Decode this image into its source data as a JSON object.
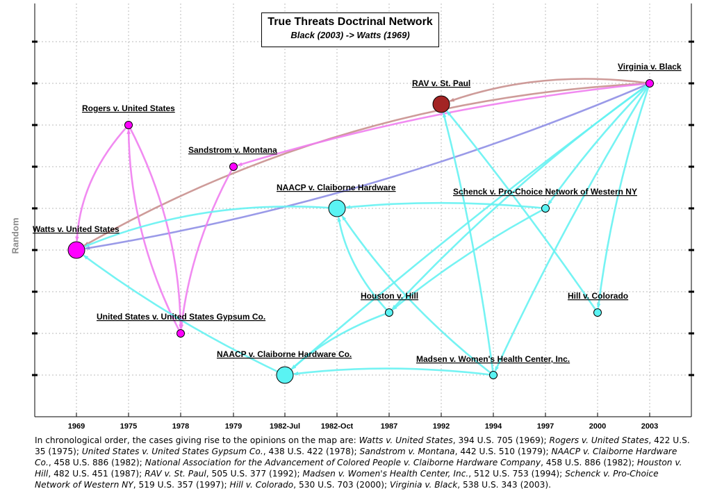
{
  "title": "True Threats Doctrinal Network",
  "subtitle": "Black (2003) -> Watts (1969)",
  "ylabel": "Random",
  "colors": {
    "magenta": "#ff00ff",
    "magenta_edge": "#f07ef0",
    "cyan": "#66ffff",
    "cyan_edge": "#66f2f2",
    "cyan_fill": "#5af3f3",
    "darkred": "#a32424",
    "brown_edge": "#c9908e",
    "blue_edge": "#8f8fe6",
    "grid": "#bbbbbb"
  },
  "x_ticks": [
    "1969",
    "1975",
    "1978",
    "1979",
    "1982-Jul",
    "1982-Oct",
    "1987",
    "1992",
    "1994",
    "1997",
    "2000",
    "2003"
  ],
  "nodes": [
    {
      "id": "watts",
      "label": "Watts v. United States",
      "x": "1969",
      "size": "large",
      "color": "magenta"
    },
    {
      "id": "rogers",
      "label": "Rogers v. United States",
      "x": "1975",
      "size": "small",
      "color": "magenta"
    },
    {
      "id": "gypsum",
      "label": "United States v. United States Gypsum Co.",
      "x": "1978",
      "size": "small",
      "color": "magenta"
    },
    {
      "id": "sandstrom",
      "label": "Sandstrom v. Montana",
      "x": "1979",
      "size": "small",
      "color": "magenta"
    },
    {
      "id": "naacp_co",
      "label": "NAACP v. Claiborne Hardware Co.",
      "x": "1982-Jul",
      "size": "large",
      "color": "cyan"
    },
    {
      "id": "naacp_hw",
      "label": "NAACP v. Claiborne Hardware",
      "x": "1982-Oct",
      "size": "large",
      "color": "cyan"
    },
    {
      "id": "houston",
      "label": "Houston v. Hill",
      "x": "1987",
      "size": "small",
      "color": "cyan"
    },
    {
      "id": "rav",
      "label": "RAV v. St. Paul",
      "x": "1992",
      "size": "large",
      "color": "darkred"
    },
    {
      "id": "madsen",
      "label": "Madsen v. Women's Health Center, Inc.",
      "x": "1994",
      "size": "small",
      "color": "cyan"
    },
    {
      "id": "schenck",
      "label": "Schenck v. Pro-Choice Network of Western NY",
      "x": "1997",
      "size": "small",
      "color": "cyan"
    },
    {
      "id": "hill",
      "label": "Hill v. Colorado",
      "x": "2000",
      "size": "small",
      "color": "cyan"
    },
    {
      "id": "black",
      "label": "Virginia v. Black",
      "x": "2003",
      "size": "small",
      "color": "magenta"
    }
  ],
  "edges": [
    {
      "from": "black",
      "to": "watts",
      "color": "blue_edge"
    },
    {
      "from": "black",
      "to": "watts",
      "color": "brown_edge"
    },
    {
      "from": "black",
      "to": "rav",
      "color": "brown_edge"
    },
    {
      "from": "black",
      "to": "sandstrom",
      "color": "magenta_edge"
    },
    {
      "from": "rogers",
      "to": "watts",
      "color": "magenta_edge"
    },
    {
      "from": "rogers",
      "to": "gypsum",
      "color": "magenta_edge"
    },
    {
      "from": "gypsum",
      "to": "rogers",
      "color": "magenta_edge"
    },
    {
      "from": "sandstrom",
      "to": "gypsum",
      "color": "magenta_edge"
    },
    {
      "from": "naacp_hw",
      "to": "watts",
      "color": "cyan_edge"
    },
    {
      "from": "naacp_co",
      "to": "watts",
      "color": "cyan_edge"
    },
    {
      "from": "schenck",
      "to": "naacp_hw",
      "color": "cyan_edge"
    },
    {
      "from": "schenck",
      "to": "houston",
      "color": "cyan_edge"
    },
    {
      "from": "madsen",
      "to": "naacp_co",
      "color": "cyan_edge"
    },
    {
      "from": "madsen",
      "to": "naacp_hw",
      "color": "cyan_edge"
    },
    {
      "from": "madsen",
      "to": "rav",
      "color": "cyan_edge"
    },
    {
      "from": "houston",
      "to": "naacp_co",
      "color": "cyan_edge"
    },
    {
      "from": "houston",
      "to": "naacp_hw",
      "color": "cyan_edge"
    },
    {
      "from": "black",
      "to": "hill",
      "color": "cyan_edge"
    },
    {
      "from": "black",
      "to": "schenck",
      "color": "cyan_edge"
    },
    {
      "from": "black",
      "to": "madsen",
      "color": "cyan_edge"
    },
    {
      "from": "black",
      "to": "houston",
      "color": "cyan_edge"
    },
    {
      "from": "black",
      "to": "naacp_co",
      "color": "cyan_edge"
    },
    {
      "from": "hill",
      "to": "rav",
      "color": "cyan_edge"
    }
  ],
  "caption": [
    {
      "t": "In chronological order, the cases giving rise to the opinions on the map are:  ",
      "i": false
    },
    {
      "t": "Watts v. United States",
      "i": true
    },
    {
      "t": ", 394 U.S. 705 (1969);  ",
      "i": false
    },
    {
      "t": "Rogers v. United States",
      "i": true
    },
    {
      "t": ", 422 U.S. 35 (1975);  ",
      "i": false
    },
    {
      "t": "United States v. United States Gypsum Co.",
      "i": true
    },
    {
      "t": ", 438 U.S. 422 (1978);  ",
      "i": false
    },
    {
      "t": "Sandstrom v. Montana",
      "i": true
    },
    {
      "t": ", 442 U.S. 510 (1979);  ",
      "i": false
    },
    {
      "t": "NAACP v. Claiborne Hardware Co.",
      "i": true
    },
    {
      "t": ", 458 U.S. 886 (1982);  ",
      "i": false
    },
    {
      "t": "National Association for the Advancement of Colored People v. Claiborne Hardware Company",
      "i": true
    },
    {
      "t": ", 458 U.S. 886 (1982);  ",
      "i": false
    },
    {
      "t": "Houston v. Hill",
      "i": true
    },
    {
      "t": ", 482 U.S. 451 (1987);  ",
      "i": false
    },
    {
      "t": "RAV v. St. Paul",
      "i": true
    },
    {
      "t": ", 505 U.S. 377 (1992);  ",
      "i": false
    },
    {
      "t": "Madsen v. Women's Health Center, Inc.",
      "i": true
    },
    {
      "t": ", 512 U.S. 753 (1994);  ",
      "i": false
    },
    {
      "t": "Schenck v. Pro-Choice Network of Western NY",
      "i": true
    },
    {
      "t": ", 519 U.S. 357 (1997);  ",
      "i": false
    },
    {
      "t": "Hill v. Colorado",
      "i": true
    },
    {
      "t": ", 530 U.S. 703 (2000);  ",
      "i": false
    },
    {
      "t": "Virginia v. Black",
      "i": true
    },
    {
      "t": ", 538 U.S. 343 (2003).",
      "i": false
    }
  ]
}
